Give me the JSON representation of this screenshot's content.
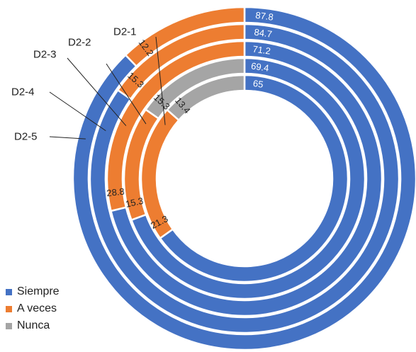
{
  "chart_data": {
    "type": "doughnut",
    "title": "",
    "rings": [
      {
        "label": "D2-5",
        "values": [
          87.8,
          12.2,
          0
        ]
      },
      {
        "label": "D2-4",
        "values": [
          84.7,
          15.3,
          0
        ]
      },
      {
        "label": "D2-3",
        "values": [
          71.2,
          28.8,
          0
        ]
      },
      {
        "label": "D2-2",
        "values": [
          69.4,
          15.3,
          15.3
        ]
      },
      {
        "label": "D2-1",
        "values": [
          65,
          21.3,
          13.4
        ]
      }
    ],
    "series": [
      {
        "name": "Siempre",
        "color": "#4472C4"
      },
      {
        "name": "A veces",
        "color": "#ED7D31"
      },
      {
        "name": "Nunca",
        "color": "#A5A5A5"
      }
    ],
    "legend_position": "bottom-left"
  },
  "legend": {
    "items": [
      {
        "label": "Siempre",
        "color": "#4472C4"
      },
      {
        "label": "A veces",
        "color": "#ED7D31"
      },
      {
        "label": "Nunca",
        "color": "#A5A5A5"
      }
    ]
  }
}
